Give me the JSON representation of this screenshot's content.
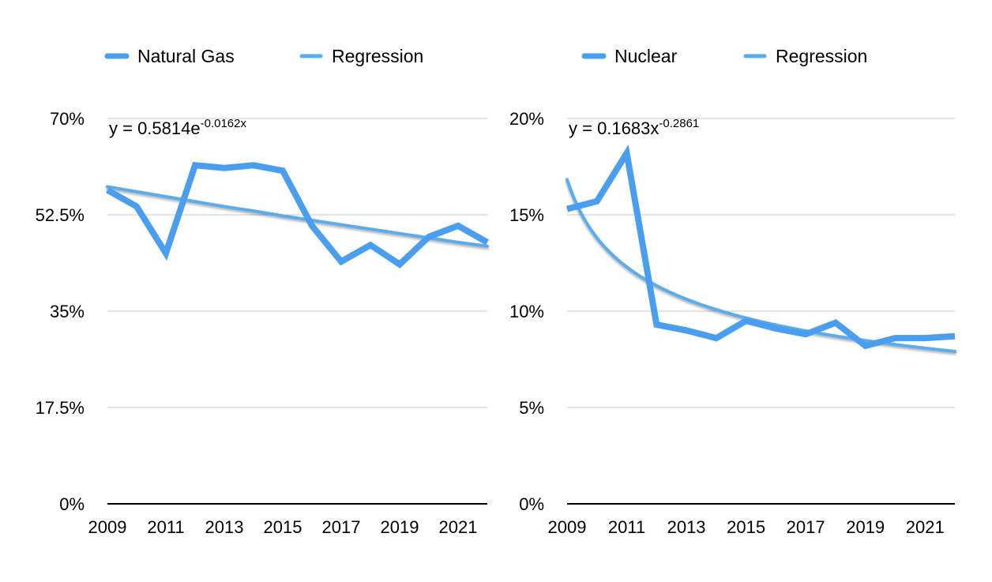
{
  "chart_data": [
    {
      "type": "line",
      "x": [
        2009,
        2010,
        2011,
        2012,
        2013,
        2014,
        2015,
        2016,
        2017,
        2018,
        2019,
        2020,
        2021,
        2022
      ],
      "x_tick_labels": [
        "2009",
        "2011",
        "2013",
        "2015",
        "2017",
        "2019",
        "2021"
      ],
      "y_tick_labels": [
        "0%",
        "17.5%",
        "35%",
        "52.5%",
        "70%"
      ],
      "ylim": [
        0,
        70
      ],
      "grid": true,
      "legend_position": "top",
      "series": [
        {
          "name": "Natural Gas",
          "color": "#4a9ef0",
          "values": [
            57.0,
            54.0,
            45.5,
            61.5,
            61.0,
            61.5,
            60.5,
            50.5,
            44.0,
            47.0,
            43.5,
            48.5,
            50.5,
            47.5
          ]
        },
        {
          "name": "Regression",
          "color": "#5aacec",
          "values": [
            57.6,
            56.7,
            55.8,
            54.9,
            54.0,
            53.2,
            52.3,
            51.5,
            50.7,
            49.9,
            49.1,
            48.3,
            47.5,
            46.8
          ]
        }
      ],
      "annotation": {
        "prefix": "y = 0.5814e",
        "superscript": "-0.0162x"
      }
    },
    {
      "type": "line",
      "x": [
        2009,
        2010,
        2011,
        2012,
        2013,
        2014,
        2015,
        2016,
        2017,
        2018,
        2019,
        2020,
        2021,
        2022
      ],
      "x_tick_labels": [
        "2009",
        "2011",
        "2013",
        "2015",
        "2017",
        "2019",
        "2021"
      ],
      "y_tick_labels": [
        "0%",
        "5%",
        "10%",
        "15%",
        "20%"
      ],
      "ylim": [
        0,
        20
      ],
      "grid": true,
      "legend_position": "top",
      "series": [
        {
          "name": "Nuclear",
          "color": "#4a9ef0",
          "values": [
            15.3,
            15.7,
            18.2,
            9.3,
            9.0,
            8.6,
            9.5,
            9.1,
            8.8,
            9.4,
            8.2,
            8.6,
            8.6,
            8.7
          ]
        },
        {
          "name": "Regression",
          "color": "#5aacec",
          "values": [
            16.83,
            13.77,
            12.23,
            11.25,
            10.55,
            10.01,
            9.59,
            9.24,
            8.94,
            8.69,
            8.47,
            8.27,
            8.1,
            7.94
          ]
        }
      ],
      "annotation": {
        "prefix": "y = 0.1683x",
        "superscript": "-0.2861"
      }
    }
  ]
}
